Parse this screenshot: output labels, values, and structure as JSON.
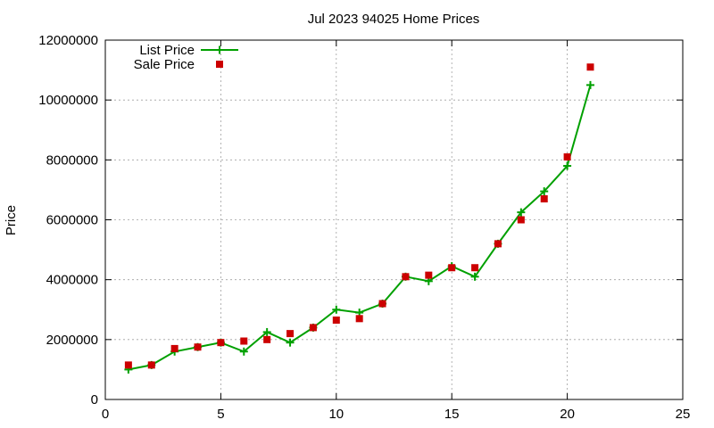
{
  "chart_data": {
    "type": "line",
    "title": "Jul 2023 94025 Home Prices",
    "xlabel": "",
    "ylabel": "Price",
    "xlim": [
      0,
      25
    ],
    "ylim": [
      0,
      12000000
    ],
    "xticks": [
      0,
      5,
      10,
      15,
      20,
      25
    ],
    "yticks": [
      0,
      2000000,
      4000000,
      6000000,
      8000000,
      10000000,
      12000000
    ],
    "xtick_labels": [
      "0",
      "5",
      "10",
      "15",
      "20",
      "25"
    ],
    "ytick_labels": [
      "0",
      "2000000",
      "4000000",
      "6000000",
      "8000000",
      "10000000",
      "12000000"
    ],
    "grid": true,
    "legend_position": "top-left",
    "series": [
      {
        "name": "List Price",
        "style": "line-plus",
        "color": "#00a000",
        "x": [
          1,
          2,
          3,
          4,
          5,
          6,
          7,
          8,
          9,
          10,
          11,
          12,
          13,
          14,
          15,
          16,
          17,
          18,
          19,
          20,
          21
        ],
        "y": [
          1000000,
          1150000,
          1600000,
          1750000,
          1900000,
          1600000,
          2250000,
          1900000,
          2400000,
          3000000,
          2900000,
          3200000,
          4100000,
          3950000,
          4450000,
          4100000,
          5200000,
          6250000,
          6950000,
          7800000,
          10500000
        ]
      },
      {
        "name": "Sale Price",
        "style": "square",
        "color": "#cc0000",
        "x": [
          1,
          2,
          3,
          4,
          5,
          6,
          7,
          8,
          9,
          10,
          11,
          12,
          13,
          14,
          15,
          16,
          17,
          18,
          19,
          20,
          21
        ],
        "y": [
          1150000,
          1150000,
          1700000,
          1750000,
          1900000,
          1950000,
          2000000,
          2200000,
          2400000,
          2650000,
          2700000,
          3200000,
          4100000,
          4150000,
          4400000,
          4400000,
          5200000,
          6000000,
          6700000,
          8100000,
          11100000
        ]
      }
    ]
  }
}
